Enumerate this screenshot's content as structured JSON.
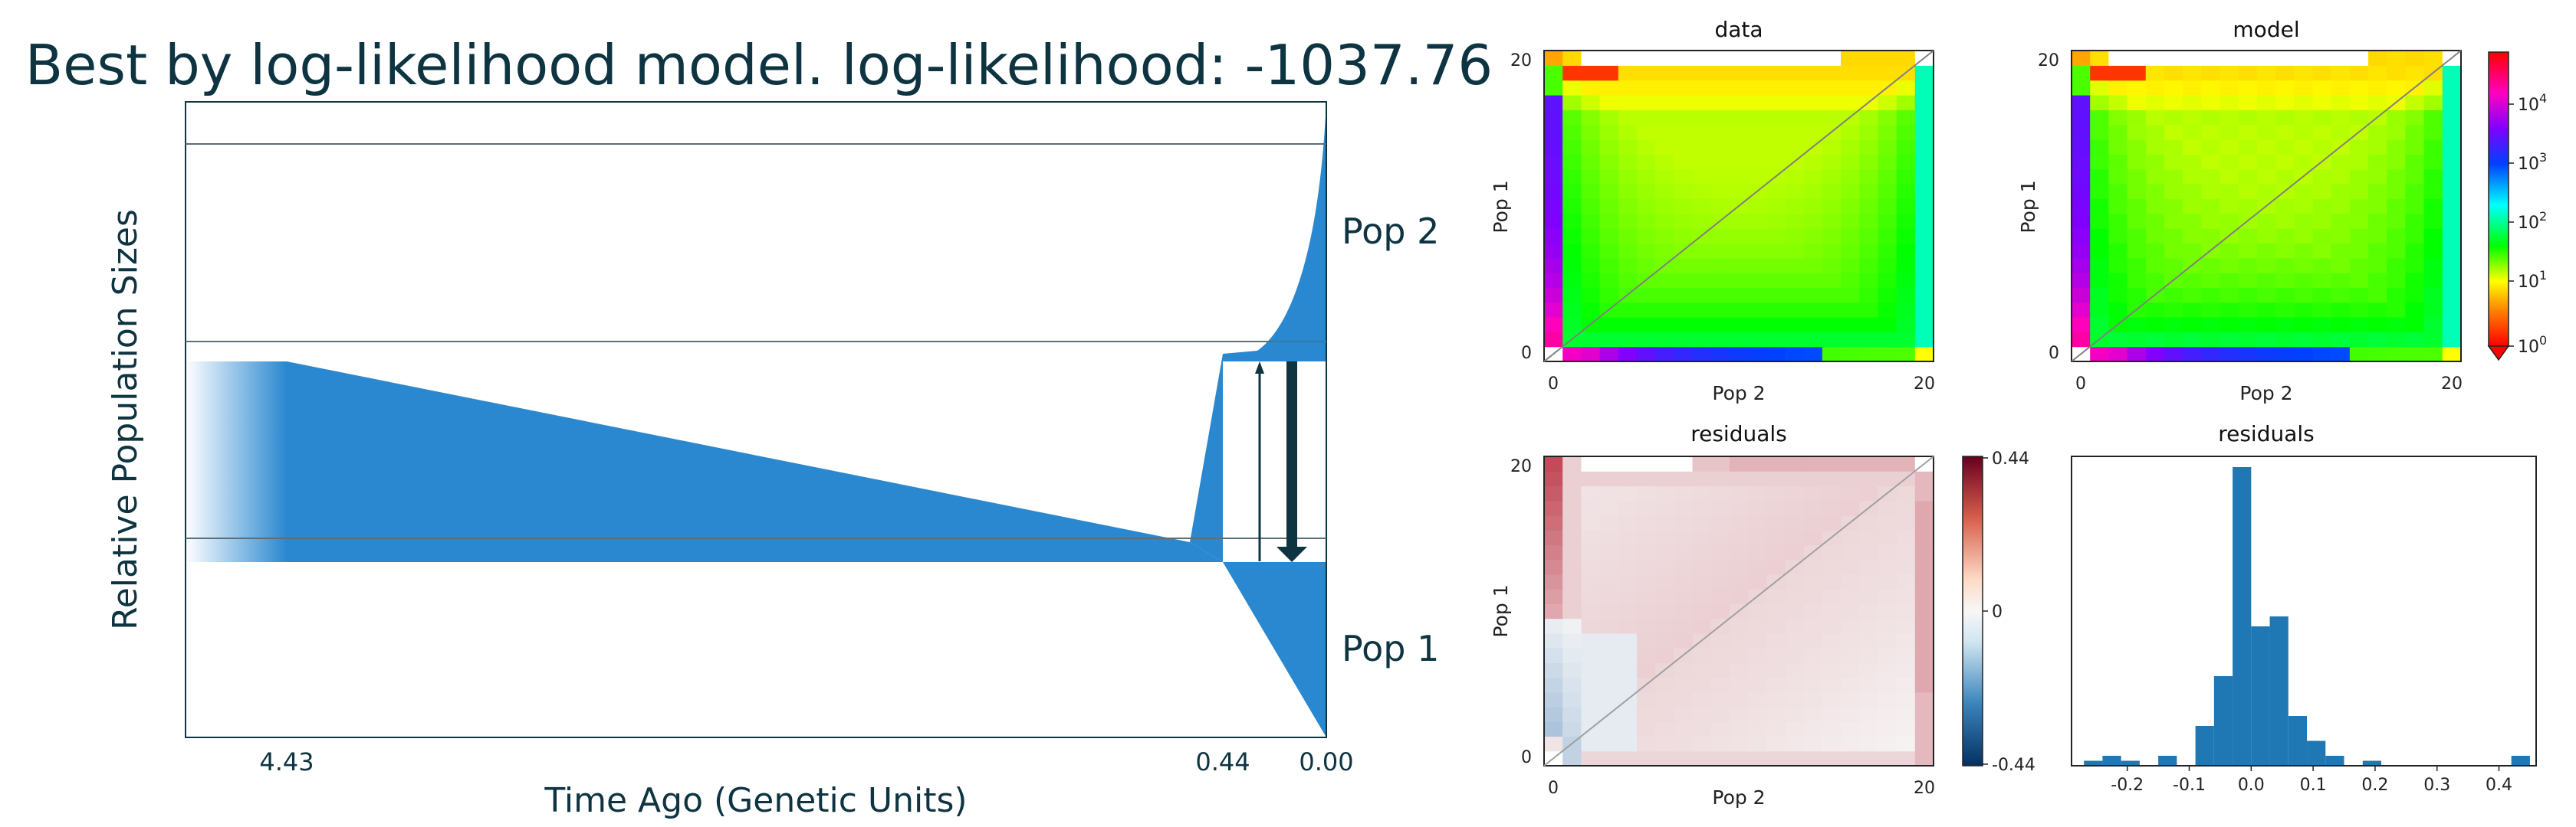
{
  "chart_data": [
    {
      "type": "area",
      "title": "Best by log-likelihood model. log-likelihood: -1037.76",
      "xlabel": "Time Ago (Genetic Units)",
      "ylabel": "Relative Population Sizes",
      "xticks": [
        "4.43",
        "0.44",
        "0.00"
      ],
      "population_labels": [
        "Pop 2",
        "Pop 1"
      ],
      "fill_color": "#2a88d0",
      "arrow_color": "#0e3442",
      "events": [
        {
          "time": 4.43,
          "label": "4.43"
        },
        {
          "time": 0.44,
          "label": "0.44"
        },
        {
          "time": 0.0,
          "label": "0.00"
        }
      ]
    },
    {
      "type": "heatmap",
      "title": "data",
      "xlabel": "Pop 2",
      "ylabel": "Pop 1",
      "xticks": [
        "0",
        "20"
      ],
      "yticks": [
        "0",
        "20"
      ],
      "grid_size": 21,
      "colormap": "spectral-log",
      "colorbar_ticks": [
        "10^4",
        "10^3",
        "10^2",
        "10^1",
        "10^0"
      ]
    },
    {
      "type": "heatmap",
      "title": "model",
      "xlabel": "Pop 2",
      "ylabel": "Pop 1",
      "xticks": [
        "0",
        "20"
      ],
      "yticks": [
        "0",
        "20"
      ],
      "grid_size": 21,
      "colormap": "spectral-log",
      "colorbar_ticks": [
        "10^4",
        "10^3",
        "10^2",
        "10^1",
        "10^0"
      ]
    },
    {
      "type": "heatmap",
      "title": "residuals",
      "xlabel": "Pop 2",
      "ylabel": "Pop 1",
      "xticks": [
        "0",
        "20"
      ],
      "yticks": [
        "0",
        "20"
      ],
      "grid_size": 21,
      "colormap": "RdBu_r",
      "clim": [
        -0.44,
        0.44
      ],
      "colorbar_ticks": [
        "0.44",
        "0",
        "-0.44"
      ]
    },
    {
      "type": "bar",
      "title": "residuals",
      "xticks": [
        "-0.2",
        "-0.1",
        "0.0",
        "0.1",
        "0.2",
        "0.3",
        "0.4"
      ],
      "xlim": [
        -0.29,
        0.46
      ],
      "bins": [
        -0.27,
        -0.24,
        -0.21,
        -0.18,
        -0.15,
        -0.12,
        -0.09,
        -0.06,
        -0.03,
        0.0,
        0.03,
        0.06,
        0.09,
        0.12,
        0.15,
        0.18,
        0.21,
        0.24,
        0.27,
        0.3,
        0.33,
        0.36,
        0.39,
        0.42,
        0.45
      ],
      "counts": [
        1,
        2,
        1,
        0,
        2,
        0,
        8,
        18,
        60,
        28,
        30,
        10,
        5,
        2,
        0,
        1,
        0,
        0,
        0,
        0,
        0,
        0,
        0,
        2
      ],
      "fill_color": "#1f77b4"
    }
  ]
}
